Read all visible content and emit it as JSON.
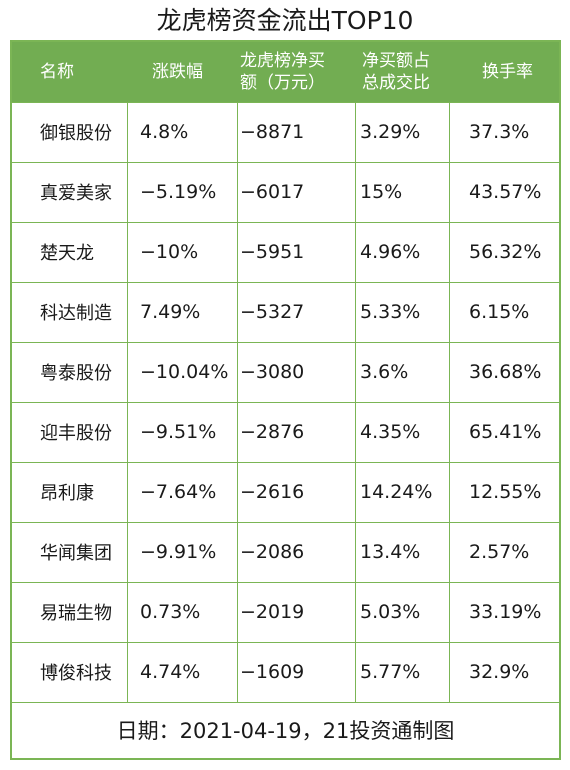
{
  "chart_data": {
    "type": "table",
    "title": "龙虎榜资金流出TOP10",
    "columns": [
      "名称",
      "涨跌幅",
      "龙虎榜净买额（万元）",
      "净买额占总成交比",
      "换手率"
    ],
    "header_lines": [
      [
        "名称"
      ],
      [
        "涨跌幅"
      ],
      [
        "龙虎榜净买",
        "额（万元）"
      ],
      [
        "净买额占",
        "总成交比"
      ],
      [
        "换手率"
      ]
    ],
    "rows": [
      [
        "御银股份",
        "4.8%",
        "-8871",
        "3.29%",
        "37.3%"
      ],
      [
        "真爱美家",
        "-5.19%",
        "-6017",
        "15%",
        "43.57%"
      ],
      [
        "楚天龙",
        "-10%",
        "-5951",
        "4.96%",
        "56.32%"
      ],
      [
        "科达制造",
        "7.49%",
        "-5327",
        "5.33%",
        "6.15%"
      ],
      [
        "粤泰股份",
        "-10.04%",
        "-3080",
        "3.6%",
        "36.68%"
      ],
      [
        "迎丰股份",
        "-9.51%",
        "-2876",
        "4.35%",
        "65.41%"
      ],
      [
        "昂利康",
        "-7.64%",
        "-2616",
        "14.24%",
        "12.55%"
      ],
      [
        "华闻集团",
        "-9.91%",
        "-2086",
        "13.4%",
        "2.57%"
      ],
      [
        "易瑞生物",
        "0.73%",
        "-2019",
        "5.03%",
        "33.19%"
      ],
      [
        "博俊科技",
        "4.74%",
        "-1609",
        "5.77%",
        "32.9%"
      ]
    ],
    "footer": "日期：2021-04-19，21投资通制图",
    "colors": {
      "header_bg": "#72ad52",
      "border": "#7bb555",
      "header_text": "#ffffff",
      "body_text": "#1a1a1a"
    }
  }
}
